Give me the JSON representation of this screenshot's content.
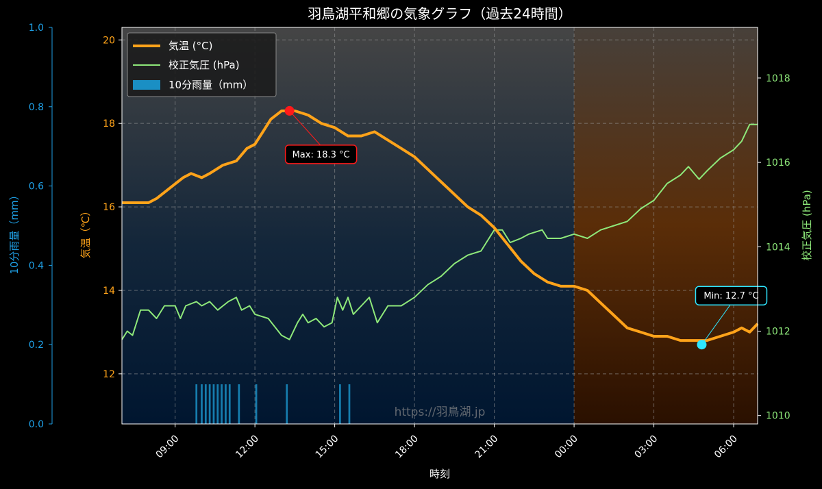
{
  "title": "羽鳥湖平和郷の気象グラフ（過去24時間）",
  "watermark": "https://羽鳥湖.jp",
  "colors": {
    "temperature": "#ffa31a",
    "pressure": "#8ee87a",
    "rain": "#1a8fc4",
    "max_marker": "#ff1a1a",
    "min_marker": "#2ee6ff",
    "grid": "#9a9a9a",
    "night_shade": "#d2691e"
  },
  "chart_data": {
    "type": "line",
    "title": "羽鳥湖平和郷の気象グラフ（過去24時間）",
    "xlabel": "時刻",
    "x_axis": {
      "start_hour": 7,
      "end_hour": 30.9,
      "ticks": [
        9,
        12,
        15,
        18,
        21,
        24,
        27,
        30
      ],
      "tick_labels": [
        "09:00",
        "12:00",
        "15:00",
        "18:00",
        "21:00",
        "00:00",
        "03:00",
        "06:00"
      ]
    },
    "night_shade_start_hour": 24,
    "grid": true,
    "legend_position": "top-left",
    "axes": {
      "temperature": {
        "label": "気温（℃）",
        "ylim": [
          10.8,
          20.3
        ],
        "ticks": [
          12,
          14,
          16,
          18,
          20
        ],
        "tick_labels": [
          "12",
          "14",
          "16",
          "18",
          "20"
        ]
      },
      "pressure": {
        "label": "校正気圧 (hPa)",
        "ylim": [
          1009.8,
          1019.2
        ],
        "ticks": [
          1010,
          1012,
          1014,
          1016,
          1018
        ],
        "tick_labels": [
          "1010",
          "1012",
          "1014",
          "1016",
          "1018"
        ]
      },
      "rain": {
        "label": "10分雨量（mm）",
        "ylim": [
          0,
          1.0
        ],
        "ticks": [
          0,
          0.2,
          0.4,
          0.6,
          0.8,
          1.0
        ],
        "tick_labels": [
          "0.0",
          "0.2",
          "0.4",
          "0.6",
          "0.8",
          "1.0"
        ]
      }
    },
    "series": [
      {
        "name": "気温 (°C)",
        "axis": "temperature",
        "points": [
          [
            7,
            16.1
          ],
          [
            8,
            16.1
          ],
          [
            8.3,
            16.2
          ],
          [
            8.7,
            16.4
          ],
          [
            9.3,
            16.7
          ],
          [
            9.6,
            16.8
          ],
          [
            10,
            16.7
          ],
          [
            10.3,
            16.8
          ],
          [
            10.8,
            17.0
          ],
          [
            11.3,
            17.1
          ],
          [
            11.7,
            17.4
          ],
          [
            12,
            17.5
          ],
          [
            12.3,
            17.8
          ],
          [
            12.6,
            18.1
          ],
          [
            13,
            18.3
          ],
          [
            13.5,
            18.3
          ],
          [
            14,
            18.2
          ],
          [
            14.5,
            18.0
          ],
          [
            15,
            17.9
          ],
          [
            15.5,
            17.7
          ],
          [
            16,
            17.7
          ],
          [
            16.5,
            17.8
          ],
          [
            17,
            17.6
          ],
          [
            17.5,
            17.4
          ],
          [
            18,
            17.2
          ],
          [
            18.5,
            16.9
          ],
          [
            19,
            16.6
          ],
          [
            19.5,
            16.3
          ],
          [
            20,
            16.0
          ],
          [
            20.5,
            15.8
          ],
          [
            21,
            15.5
          ],
          [
            21.5,
            15.1
          ],
          [
            22,
            14.7
          ],
          [
            22.5,
            14.4
          ],
          [
            23,
            14.2
          ],
          [
            23.5,
            14.1
          ],
          [
            24,
            14.1
          ],
          [
            24.5,
            14.0
          ],
          [
            25,
            13.7
          ],
          [
            25.5,
            13.4
          ],
          [
            26,
            13.1
          ],
          [
            26.5,
            13.0
          ],
          [
            27,
            12.9
          ],
          [
            27.5,
            12.9
          ],
          [
            28,
            12.8
          ],
          [
            28.5,
            12.8
          ],
          [
            29,
            12.8
          ],
          [
            29.5,
            12.9
          ],
          [
            30,
            13.0
          ],
          [
            30.3,
            13.1
          ],
          [
            30.6,
            13.0
          ],
          [
            30.9,
            13.2
          ]
        ]
      },
      {
        "name": "校正気圧 (hPa)",
        "axis": "pressure",
        "points": [
          [
            7,
            1011.8
          ],
          [
            7.2,
            1012.0
          ],
          [
            7.4,
            1011.9
          ],
          [
            7.7,
            1012.5
          ],
          [
            8,
            1012.5
          ],
          [
            8.3,
            1012.3
          ],
          [
            8.6,
            1012.6
          ],
          [
            9,
            1012.6
          ],
          [
            9.2,
            1012.3
          ],
          [
            9.4,
            1012.6
          ],
          [
            9.8,
            1012.7
          ],
          [
            10,
            1012.6
          ],
          [
            10.3,
            1012.7
          ],
          [
            10.6,
            1012.5
          ],
          [
            11,
            1012.7
          ],
          [
            11.3,
            1012.8
          ],
          [
            11.5,
            1012.5
          ],
          [
            11.8,
            1012.6
          ],
          [
            12,
            1012.4
          ],
          [
            12.5,
            1012.3
          ],
          [
            13,
            1011.9
          ],
          [
            13.3,
            1011.8
          ],
          [
            13.6,
            1012.2
          ],
          [
            13.8,
            1012.4
          ],
          [
            14,
            1012.2
          ],
          [
            14.3,
            1012.3
          ],
          [
            14.6,
            1012.1
          ],
          [
            14.9,
            1012.2
          ],
          [
            15.1,
            1012.8
          ],
          [
            15.3,
            1012.5
          ],
          [
            15.5,
            1012.8
          ],
          [
            15.7,
            1012.4
          ],
          [
            16,
            1012.6
          ],
          [
            16.3,
            1012.8
          ],
          [
            16.6,
            1012.2
          ],
          [
            17,
            1012.6
          ],
          [
            17.5,
            1012.6
          ],
          [
            18,
            1012.8
          ],
          [
            18.5,
            1013.1
          ],
          [
            19,
            1013.3
          ],
          [
            19.5,
            1013.6
          ],
          [
            20,
            1013.8
          ],
          [
            20.5,
            1013.9
          ],
          [
            21,
            1014.4
          ],
          [
            21.3,
            1014.4
          ],
          [
            21.6,
            1014.1
          ],
          [
            22,
            1014.2
          ],
          [
            22.3,
            1014.3
          ],
          [
            22.8,
            1014.4
          ],
          [
            23,
            1014.2
          ],
          [
            23.5,
            1014.2
          ],
          [
            24,
            1014.3
          ],
          [
            24.5,
            1014.2
          ],
          [
            25,
            1014.4
          ],
          [
            25.5,
            1014.5
          ],
          [
            26,
            1014.6
          ],
          [
            26.5,
            1014.9
          ],
          [
            27,
            1015.1
          ],
          [
            27.5,
            1015.5
          ],
          [
            28,
            1015.7
          ],
          [
            28.3,
            1015.9
          ],
          [
            28.7,
            1015.6
          ],
          [
            29,
            1015.8
          ],
          [
            29.5,
            1016.1
          ],
          [
            30,
            1016.3
          ],
          [
            30.3,
            1016.5
          ],
          [
            30.6,
            1016.9
          ],
          [
            30.9,
            1016.9
          ]
        ]
      },
      {
        "name": "10分雨量（mm）",
        "axis": "rain",
        "type": "bar",
        "bar_width_hours": 0.07,
        "points": [
          [
            9.8,
            0.1
          ],
          [
            10.0,
            0.1
          ],
          [
            10.15,
            0.1
          ],
          [
            10.3,
            0.1
          ],
          [
            10.45,
            0.1
          ],
          [
            10.6,
            0.1
          ],
          [
            10.75,
            0.1
          ],
          [
            10.9,
            0.1
          ],
          [
            11.05,
            0.1
          ],
          [
            11.4,
            0.1
          ],
          [
            12.05,
            0.1
          ],
          [
            13.2,
            0.1
          ],
          [
            15.2,
            0.1
          ],
          [
            15.55,
            0.1
          ]
        ]
      }
    ],
    "annotations": [
      {
        "label": "Max: 18.3 °C",
        "x": 13.3,
        "y": 18.3,
        "series": "気温 (°C)",
        "kind": "max"
      },
      {
        "label": "Min: 12.7 °C",
        "x": 28.8,
        "y": 12.7,
        "series": "気温 (°C)",
        "kind": "min"
      }
    ]
  }
}
